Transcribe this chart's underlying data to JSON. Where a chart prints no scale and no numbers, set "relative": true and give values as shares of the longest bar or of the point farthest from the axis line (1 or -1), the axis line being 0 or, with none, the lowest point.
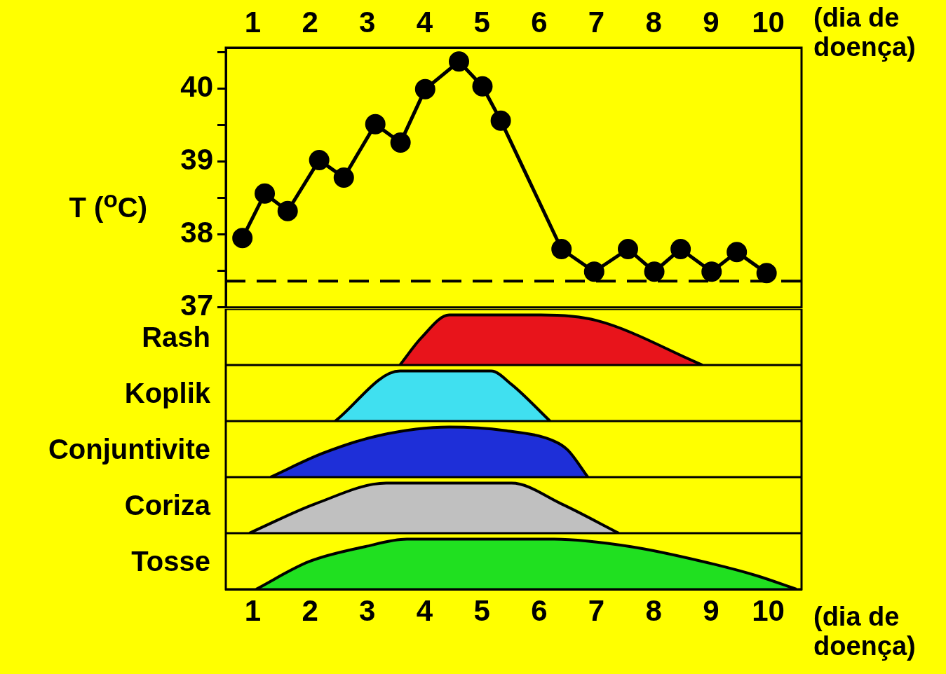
{
  "chart_data": [
    {
      "type": "line",
      "xlabel": "(dia de doença)",
      "ylabel": "T ($^{o}$C)",
      "xlim": [
        0.53,
        10.58
      ],
      "xticks": [
        1,
        2,
        3,
        4,
        5,
        6,
        7,
        8,
        9,
        10
      ],
      "ylim": [
        37,
        40.56
      ],
      "yticks": [
        37,
        {
          "value": 37.5,
          "label": null
        },
        38,
        {
          "value": 38.5,
          "label": null
        },
        39,
        {
          "value": 39.5,
          "label": null
        },
        40,
        {
          "value": 40.5,
          "label": null
        }
      ],
      "marker": "circle",
      "line_style": "solid",
      "color": "#000000",
      "x": [
        0.82,
        1.21,
        1.61,
        2.16,
        2.59,
        3.14,
        3.58,
        4.01,
        4.6,
        5.01,
        5.33,
        6.39,
        6.96,
        7.55,
        8.01,
        8.47,
        9.01,
        9.45,
        9.97
      ],
      "values": [
        37.95,
        38.56,
        38.32,
        39.02,
        38.78,
        39.51,
        39.26,
        39.99,
        40.37,
        40.03,
        39.56,
        37.8,
        37.49,
        37.8,
        37.49,
        37.8,
        37.49,
        37.76,
        37.47
      ],
      "ref_lines": [
        {
          "axis": "y",
          "value": 37.36,
          "line_style": "dashed",
          "color": "#000000"
        }
      ]
    },
    {
      "type": "area",
      "ylabel": "Rash",
      "relative": true,
      "tick_labels": false,
      "xlim": [
        0.53,
        10.58
      ],
      "color": "#e8141b",
      "x": [
        3.57,
        3.94,
        4.43,
        6.03,
        7.0,
        8.85
      ],
      "values": [
        0,
        0.54,
        1,
        1,
        0.89,
        0
      ]
    },
    {
      "type": "area",
      "ylabel": "Koplik",
      "relative": true,
      "tick_labels": false,
      "xlim": [
        0.53,
        10.58
      ],
      "color": "#40e0f0",
      "x": [
        2.44,
        3.57,
        5.16,
        5.52,
        6.19
      ],
      "values": [
        0,
        1,
        1,
        0.73,
        0
      ]
    },
    {
      "type": "area",
      "ylabel": "Conjuntivite",
      "relative": true,
      "tick_labels": false,
      "xlim": [
        0.53,
        10.58
      ],
      "color": "#1e2fd8",
      "x": [
        1.31,
        2.23,
        3.2,
        4.43,
        5.4,
        6.26,
        6.5,
        6.85
      ],
      "values": [
        0,
        0.48,
        0.83,
        1,
        0.93,
        0.72,
        0.54,
        0
      ]
    },
    {
      "type": "area",
      "ylabel": "Coriza",
      "relative": true,
      "tick_labels": false,
      "xlim": [
        0.53,
        10.58
      ],
      "color": "#c0c0c0",
      "x": [
        0.94,
        2.1,
        3.33,
        5.52,
        6.38,
        7.39
      ],
      "values": [
        0,
        0.59,
        1,
        1,
        0.59,
        0
      ]
    },
    {
      "type": "area",
      "ylabel": "Tosse",
      "relative": true,
      "tick_labels": "x",
      "xlabel": "(dia de doença)",
      "xlim": [
        0.53,
        10.58
      ],
      "xticks": [
        1,
        2,
        3,
        4,
        5,
        6,
        7,
        8,
        9,
        10
      ],
      "color": "#20e020",
      "x": [
        1.06,
        1.98,
        2.96,
        3.69,
        6.26,
        7.6,
        8.83,
        9.8,
        10.49
      ],
      "values": [
        0,
        0.55,
        0.85,
        1,
        1,
        0.85,
        0.56,
        0.27,
        0
      ]
    }
  ]
}
